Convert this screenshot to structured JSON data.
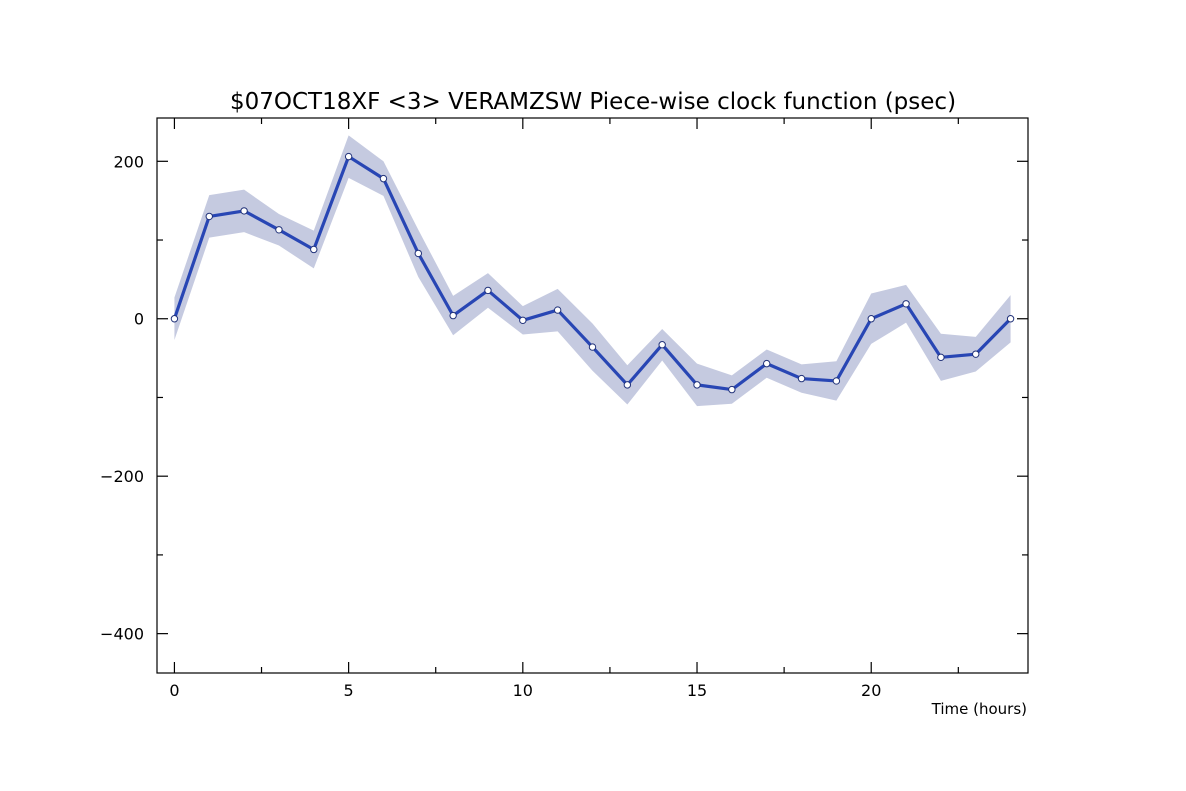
{
  "chart_data": {
    "type": "line",
    "title": "$07OCT18XF <3>  VERAMZSW  Piece-wise clock function (psec)",
    "xlabel": "Time (hours)",
    "ylabel": "",
    "xlim": [
      -0.5,
      24.5
    ],
    "ylim": [
      -450,
      255
    ],
    "x_ticks": [
      0,
      5,
      10,
      15,
      20
    ],
    "x_tick_labels": [
      "0",
      "5",
      "10",
      "15",
      "20"
    ],
    "y_ticks": [
      200,
      0,
      -200,
      -400
    ],
    "y_tick_labels": [
      "200",
      "0",
      "−200",
      "−400"
    ],
    "grid": false,
    "series": [
      {
        "x": [
          0,
          1,
          2,
          3,
          4,
          5,
          6,
          7,
          8,
          9,
          10,
          11,
          12,
          13,
          14,
          15,
          16,
          17,
          18,
          19,
          20,
          21,
          22,
          23,
          24
        ],
        "values": [
          0,
          130,
          137,
          113,
          88,
          206,
          178,
          83,
          4,
          36,
          -2,
          11,
          -36,
          -84,
          -33,
          -84,
          -90,
          -57,
          -76,
          -79,
          0,
          19,
          -49,
          -45,
          0
        ],
        "error": [
          27,
          27,
          27,
          20,
          24,
          27,
          22,
          30,
          25,
          22,
          18,
          27,
          30,
          25,
          20,
          27,
          18,
          18,
          18,
          25,
          32,
          24,
          30,
          22,
          30
        ]
      }
    ],
    "colors": {
      "line": "#2846b4",
      "band": "#c5cae0",
      "marker_fill": "#ffffff"
    }
  }
}
